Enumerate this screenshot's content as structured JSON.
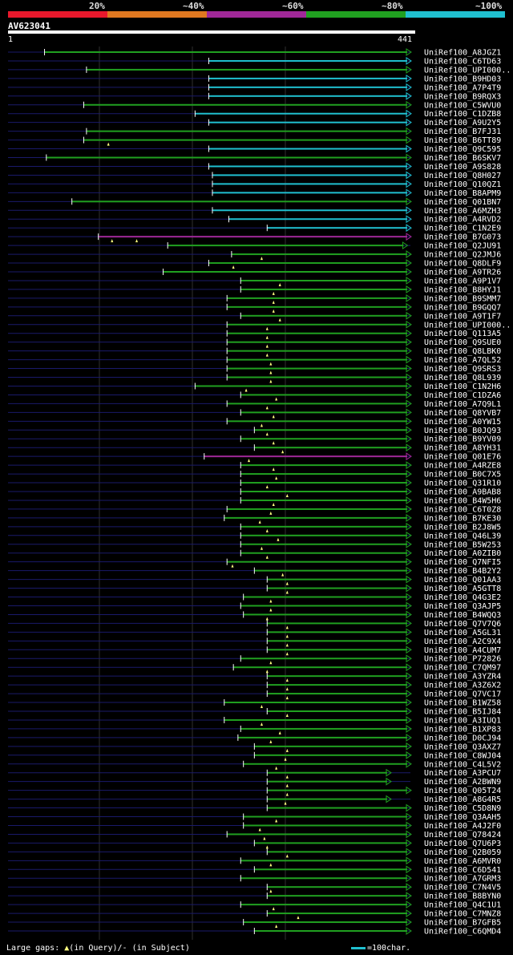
{
  "query": {
    "name": "AV623041",
    "start": "1",
    "end": "441"
  },
  "legend": {
    "labels": [
      "20%",
      "~40%",
      "~60%",
      "~80%",
      "~100%"
    ],
    "colors": [
      "#e8182c",
      "#e07820",
      "#a02898",
      "#20a020",
      "#20c0d0"
    ]
  },
  "footer": {
    "large_gaps": "Large gaps:",
    "in_query": "(in Query)/",
    "dash": "-",
    "in_subject": "(in Subject)",
    "scale": "=100char."
  },
  "chart_data": {
    "type": "alignment",
    "query_length": 441,
    "hits": [
      {
        "name": "UniRef100_A8JGZ1",
        "color": "green",
        "start": 40,
        "end": 441,
        "marks": []
      },
      {
        "name": "UniRef100_C6TD63",
        "color": "cyan",
        "start": 220,
        "end": 441,
        "marks": []
      },
      {
        "name": "UniRef100_UPI000..",
        "color": "green",
        "start": 86,
        "end": 441,
        "marks": []
      },
      {
        "name": "UniRef100_B9HD03",
        "color": "cyan",
        "start": 220,
        "end": 441,
        "marks": []
      },
      {
        "name": "UniRef100_A7P4T9",
        "color": "cyan",
        "start": 220,
        "end": 441,
        "marks": []
      },
      {
        "name": "UniRef100_B9RQX3",
        "color": "cyan",
        "start": 220,
        "end": 441,
        "marks": []
      },
      {
        "name": "UniRef100_C5WVU0",
        "color": "green",
        "start": 83,
        "end": 441,
        "marks": []
      },
      {
        "name": "UniRef100_C1DZB8",
        "color": "cyan",
        "start": 205,
        "end": 441,
        "marks": []
      },
      {
        "name": "UniRef100_A9U2Y5",
        "color": "cyan",
        "start": 220,
        "end": 441,
        "marks": []
      },
      {
        "name": "UniRef100_B7FJ31",
        "color": "green",
        "start": 86,
        "end": 441,
        "marks": []
      },
      {
        "name": "UniRef100_B6TT89",
        "color": "green",
        "start": 83,
        "end": 441,
        "marks": [
          110
        ]
      },
      {
        "name": "UniRef100_Q9C595",
        "color": "cyan",
        "start": 220,
        "end": 441,
        "marks": []
      },
      {
        "name": "UniRef100_B6SKV7",
        "color": "green",
        "start": 42,
        "end": 441,
        "marks": []
      },
      {
        "name": "UniRef100_A9S828",
        "color": "cyan",
        "start": 220,
        "end": 441,
        "marks": []
      },
      {
        "name": "UniRef100_Q8H027",
        "color": "cyan",
        "start": 224,
        "end": 441,
        "marks": []
      },
      {
        "name": "UniRef100_Q10QZ1",
        "color": "cyan",
        "start": 224,
        "end": 441,
        "marks": []
      },
      {
        "name": "UniRef100_B8APM9",
        "color": "cyan",
        "start": 224,
        "end": 441,
        "marks": []
      },
      {
        "name": "UniRef100_Q01BN7",
        "color": "green",
        "start": 70,
        "end": 441,
        "marks": []
      },
      {
        "name": "UniRef100_A6MZH3",
        "color": "cyan",
        "start": 224,
        "end": 441,
        "marks": []
      },
      {
        "name": "UniRef100_A4RVD2",
        "color": "cyan",
        "start": 242,
        "end": 441,
        "marks": []
      },
      {
        "name": "UniRef100_C1N2E9",
        "color": "cyan",
        "start": 284,
        "end": 441,
        "marks": []
      },
      {
        "name": "UniRef100_B7G073",
        "color": "purple",
        "start": 99,
        "end": 441,
        "marks": [
          114,
          141
        ]
      },
      {
        "name": "UniRef100_Q2JU91",
        "color": "green",
        "start": 175,
        "end": 437,
        "marks": []
      },
      {
        "name": "UniRef100_Q2JMJ6",
        "color": "green",
        "start": 245,
        "end": 441,
        "marks": [
          278
        ]
      },
      {
        "name": "UniRef100_Q8DLF9",
        "color": "green",
        "start": 220,
        "end": 441,
        "marks": [
          247
        ]
      },
      {
        "name": "UniRef100_A9TR26",
        "color": "green",
        "start": 170,
        "end": 441,
        "marks": []
      },
      {
        "name": "UniRef100_A9P1V7",
        "color": "green",
        "start": 255,
        "end": 441,
        "marks": [
          298
        ]
      },
      {
        "name": "UniRef100_B8HYJ1",
        "color": "green",
        "start": 255,
        "end": 441,
        "marks": [
          291
        ]
      },
      {
        "name": "UniRef100_B9SMM7",
        "color": "green",
        "start": 240,
        "end": 441,
        "marks": [
          291
        ]
      },
      {
        "name": "UniRef100_B9GQQ7",
        "color": "green",
        "start": 240,
        "end": 441,
        "marks": [
          291
        ]
      },
      {
        "name": "UniRef100_A9T1F7",
        "color": "green",
        "start": 255,
        "end": 441,
        "marks": [
          298
        ]
      },
      {
        "name": "UniRef100_UPI000..",
        "color": "green",
        "start": 240,
        "end": 441,
        "marks": [
          284
        ]
      },
      {
        "name": "UniRef100_Q113A5",
        "color": "green",
        "start": 240,
        "end": 441,
        "marks": [
          284
        ]
      },
      {
        "name": "UniRef100_Q9SUE0",
        "color": "green",
        "start": 240,
        "end": 441,
        "marks": [
          284
        ]
      },
      {
        "name": "UniRef100_Q8LBK0",
        "color": "green",
        "start": 240,
        "end": 441,
        "marks": [
          284
        ]
      },
      {
        "name": "UniRef100_A7QL52",
        "color": "green",
        "start": 240,
        "end": 441,
        "marks": [
          288
        ]
      },
      {
        "name": "UniRef100_Q9SRS3",
        "color": "green",
        "start": 240,
        "end": 441,
        "marks": [
          288
        ]
      },
      {
        "name": "UniRef100_Q8L939",
        "color": "green",
        "start": 240,
        "end": 441,
        "marks": [
          288
        ]
      },
      {
        "name": "UniRef100_C1N2H6",
        "color": "green",
        "start": 205,
        "end": 441,
        "marks": [
          261
        ]
      },
      {
        "name": "UniRef100_C1DZA6",
        "color": "green",
        "start": 255,
        "end": 441,
        "marks": [
          294
        ]
      },
      {
        "name": "UniRef100_A7Q9L1",
        "color": "green",
        "start": 240,
        "end": 441,
        "marks": [
          284
        ]
      },
      {
        "name": "UniRef100_Q8YVB7",
        "color": "green",
        "start": 255,
        "end": 441,
        "marks": [
          291
        ]
      },
      {
        "name": "UniRef100_A0YW15",
        "color": "green",
        "start": 240,
        "end": 441,
        "marks": [
          278
        ]
      },
      {
        "name": "UniRef100_B0JQ93",
        "color": "green",
        "start": 270,
        "end": 441,
        "marks": [
          284
        ]
      },
      {
        "name": "UniRef100_B9YV09",
        "color": "green",
        "start": 255,
        "end": 441,
        "marks": [
          291
        ]
      },
      {
        "name": "UniRef100_A8YH31",
        "color": "green",
        "start": 270,
        "end": 441,
        "marks": [
          301
        ]
      },
      {
        "name": "UniRef100_Q01E76",
        "color": "purple",
        "start": 215,
        "end": 441,
        "marks": [
          264
        ]
      },
      {
        "name": "UniRef100_A4RZE8",
        "color": "green",
        "start": 255,
        "end": 441,
        "marks": [
          291
        ]
      },
      {
        "name": "UniRef100_B0C7X5",
        "color": "green",
        "start": 255,
        "end": 441,
        "marks": [
          294
        ]
      },
      {
        "name": "UniRef100_Q31R10",
        "color": "green",
        "start": 255,
        "end": 441,
        "marks": [
          284
        ]
      },
      {
        "name": "UniRef100_A9BAB8",
        "color": "green",
        "start": 255,
        "end": 441,
        "marks": [
          306
        ]
      },
      {
        "name": "UniRef100_B4W5H6",
        "color": "green",
        "start": 255,
        "end": 441,
        "marks": [
          291
        ]
      },
      {
        "name": "UniRef100_C6T0Z8",
        "color": "green",
        "start": 240,
        "end": 441,
        "marks": [
          288
        ]
      },
      {
        "name": "UniRef100_B7KE30",
        "color": "green",
        "start": 237,
        "end": 441,
        "marks": [
          276
        ]
      },
      {
        "name": "UniRef100_B2J8W5",
        "color": "green",
        "start": 255,
        "end": 441,
        "marks": [
          284
        ]
      },
      {
        "name": "UniRef100_Q46L39",
        "color": "green",
        "start": 255,
        "end": 441,
        "marks": [
          296
        ]
      },
      {
        "name": "UniRef100_B5W253",
        "color": "green",
        "start": 255,
        "end": 441,
        "marks": [
          278
        ]
      },
      {
        "name": "UniRef100_A0ZIB0",
        "color": "green",
        "start": 255,
        "end": 441,
        "marks": [
          284
        ]
      },
      {
        "name": "UniRef100_Q7NFI5",
        "color": "green",
        "start": 240,
        "end": 441,
        "marks": [
          246
        ]
      },
      {
        "name": "UniRef100_B4B2Y2",
        "color": "green",
        "start": 270,
        "end": 441,
        "marks": [
          301
        ]
      },
      {
        "name": "UniRef100_Q01AA3",
        "color": "green",
        "start": 284,
        "end": 441,
        "marks": [
          306
        ]
      },
      {
        "name": "UniRef100_A5GTT8",
        "color": "green",
        "start": 284,
        "end": 441,
        "marks": [
          306
        ]
      },
      {
        "name": "UniRef100_Q4G3E2",
        "color": "green",
        "start": 258,
        "end": 441,
        "marks": [
          288
        ]
      },
      {
        "name": "UniRef100_Q3AJP5",
        "color": "green",
        "start": 255,
        "end": 441,
        "marks": [
          288
        ]
      },
      {
        "name": "UniRef100_B4WQQ3",
        "color": "green",
        "start": 258,
        "end": 441,
        "marks": [
          284
        ]
      },
      {
        "name": "UniRef100_Q7V7Q6",
        "color": "green",
        "start": 284,
        "end": 441,
        "marks": [
          306
        ]
      },
      {
        "name": "UniRef100_A5GL31",
        "color": "green",
        "start": 284,
        "end": 441,
        "marks": [
          306
        ]
      },
      {
        "name": "UniRef100_A2C9X4",
        "color": "green",
        "start": 284,
        "end": 441,
        "marks": [
          306
        ]
      },
      {
        "name": "UniRef100_A4CUM7",
        "color": "green",
        "start": 284,
        "end": 441,
        "marks": [
          306
        ]
      },
      {
        "name": "UniRef100_P72826",
        "color": "green",
        "start": 255,
        "end": 441,
        "marks": [
          288
        ]
      },
      {
        "name": "UniRef100_C7QM97",
        "color": "green",
        "start": 247,
        "end": 441,
        "marks": [
          284
        ]
      },
      {
        "name": "UniRef100_A3YZR4",
        "color": "green",
        "start": 284,
        "end": 441,
        "marks": [
          306
        ]
      },
      {
        "name": "UniRef100_A3Z6X2",
        "color": "green",
        "start": 284,
        "end": 441,
        "marks": [
          306
        ]
      },
      {
        "name": "UniRef100_Q7VC17",
        "color": "green",
        "start": 284,
        "end": 441,
        "marks": [
          306
        ]
      },
      {
        "name": "UniRef100_B1WZ58",
        "color": "green",
        "start": 237,
        "end": 441,
        "marks": [
          278
        ]
      },
      {
        "name": "UniRef100_B5IJ84",
        "color": "green",
        "start": 284,
        "end": 441,
        "marks": [
          306
        ]
      },
      {
        "name": "UniRef100_A3IUQ1",
        "color": "green",
        "start": 237,
        "end": 441,
        "marks": [
          278
        ]
      },
      {
        "name": "UniRef100_B1XP83",
        "color": "green",
        "start": 255,
        "end": 441,
        "marks": [
          298
        ]
      },
      {
        "name": "UniRef100_D0CJ94",
        "color": "green",
        "start": 252,
        "end": 441,
        "marks": [
          288
        ]
      },
      {
        "name": "UniRef100_Q3AXZ7",
        "color": "green",
        "start": 270,
        "end": 441,
        "marks": [
          306
        ]
      },
      {
        "name": "UniRef100_C8WJ04",
        "color": "green",
        "start": 270,
        "end": 441,
        "marks": [
          304
        ]
      },
      {
        "name": "UniRef100_C4L5V2",
        "color": "green",
        "start": 258,
        "end": 441,
        "marks": [
          294
        ]
      },
      {
        "name": "UniRef100_A3PCU7",
        "color": "green",
        "start": 284,
        "end": 419,
        "marks": [
          306
        ]
      },
      {
        "name": "UniRef100_A2BWN9",
        "color": "green",
        "start": 284,
        "end": 419,
        "marks": [
          306
        ]
      },
      {
        "name": "UniRef100_Q05T24",
        "color": "green",
        "start": 284,
        "end": 441,
        "marks": [
          306
        ]
      },
      {
        "name": "UniRef100_A8G4R5",
        "color": "green",
        "start": 284,
        "end": 419,
        "marks": [
          304
        ]
      },
      {
        "name": "UniRef100_C5D8N9",
        "color": "green",
        "start": 284,
        "end": 441,
        "marks": []
      },
      {
        "name": "UniRef100_Q3AAH5",
        "color": "green",
        "start": 258,
        "end": 441,
        "marks": [
          294
        ]
      },
      {
        "name": "UniRef100_A4J2F0",
        "color": "green",
        "start": 258,
        "end": 441,
        "marks": [
          276
        ]
      },
      {
        "name": "UniRef100_Q78424",
        "color": "green",
        "start": 240,
        "end": 441,
        "marks": [
          281
        ]
      },
      {
        "name": "UniRef100_Q7U6P3",
        "color": "green",
        "start": 270,
        "end": 441,
        "marks": [
          284
        ]
      },
      {
        "name": "UniRef100_Q2B059",
        "color": "green",
        "start": 284,
        "end": 441,
        "marks": [
          306
        ]
      },
      {
        "name": "UniRef100_A6MVR0",
        "color": "green",
        "start": 255,
        "end": 441,
        "marks": [
          288
        ]
      },
      {
        "name": "UniRef100_C6D541",
        "color": "green",
        "start": 270,
        "end": 441,
        "marks": []
      },
      {
        "name": "UniRef100_A7GRM3",
        "color": "green",
        "start": 255,
        "end": 441,
        "marks": []
      },
      {
        "name": "UniRef100_C7N4V5",
        "color": "green",
        "start": 284,
        "end": 441,
        "marks": [
          288
        ]
      },
      {
        "name": "UniRef100_B8BYN0",
        "color": "green",
        "start": 284,
        "end": 441,
        "marks": []
      },
      {
        "name": "UniRef100_Q4C1U1",
        "color": "green",
        "start": 255,
        "end": 441,
        "marks": [
          291
        ]
      },
      {
        "name": "UniRef100_C7MNZ8",
        "color": "green",
        "start": 284,
        "end": 441,
        "marks": [
          318
        ]
      },
      {
        "name": "UniRef100_B7GFB5",
        "color": "green",
        "start": 258,
        "end": 441,
        "marks": [
          294
        ]
      },
      {
        "name": "UniRef100_C6QMD4",
        "color": "green",
        "start": 270,
        "end": 441,
        "marks": []
      }
    ]
  }
}
